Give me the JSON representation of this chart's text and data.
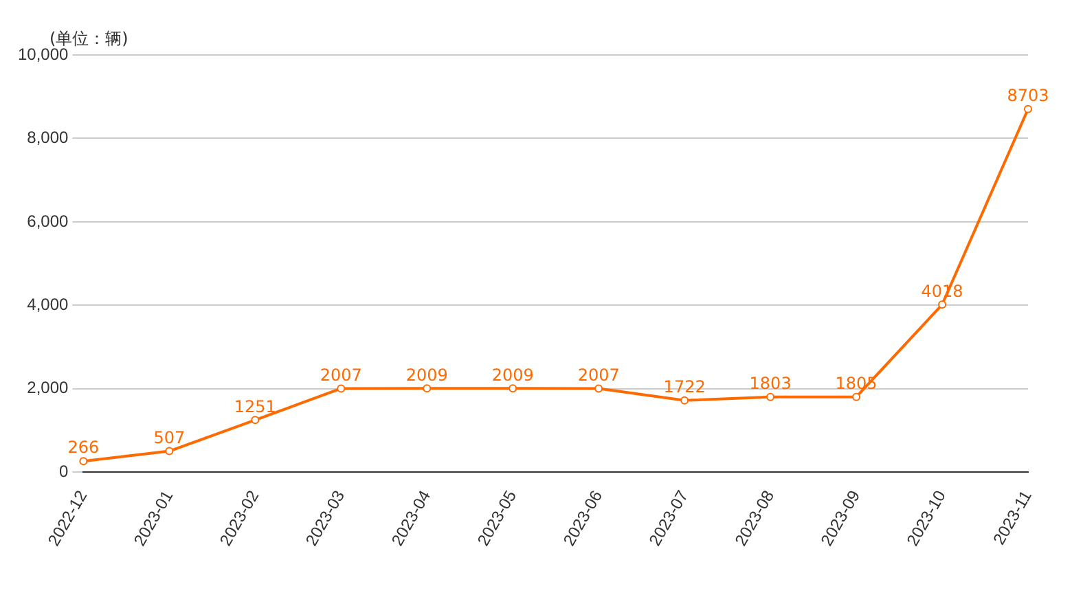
{
  "chart_data": {
    "type": "line",
    "ylabel": "(单位：辆)",
    "categories": [
      "2022-12",
      "2023-01",
      "2023-02",
      "2023-03",
      "2023-04",
      "2023-05",
      "2023-06",
      "2023-07",
      "2023-08",
      "2023-09",
      "2023-10",
      "2023-11"
    ],
    "series": [
      {
        "color": "#ff6a00",
        "values": [
          266,
          507,
          1251,
          2007,
          2009,
          2009,
          2007,
          1722,
          1803,
          1805,
          4018,
          8703
        ]
      }
    ],
    "ylim": [
      0,
      10000
    ],
    "yticks": [
      {
        "value": 0,
        "label": "0"
      },
      {
        "value": 2000,
        "label": "2,000"
      },
      {
        "value": 4000,
        "label": "4,000"
      },
      {
        "value": 6000,
        "label": "6,000"
      },
      {
        "value": 8000,
        "label": "8,000"
      },
      {
        "value": 10000,
        "label": "10,000"
      }
    ],
    "grid": "y",
    "legend": false,
    "marker": "circle",
    "line_style": "solid",
    "data_labels": true
  }
}
